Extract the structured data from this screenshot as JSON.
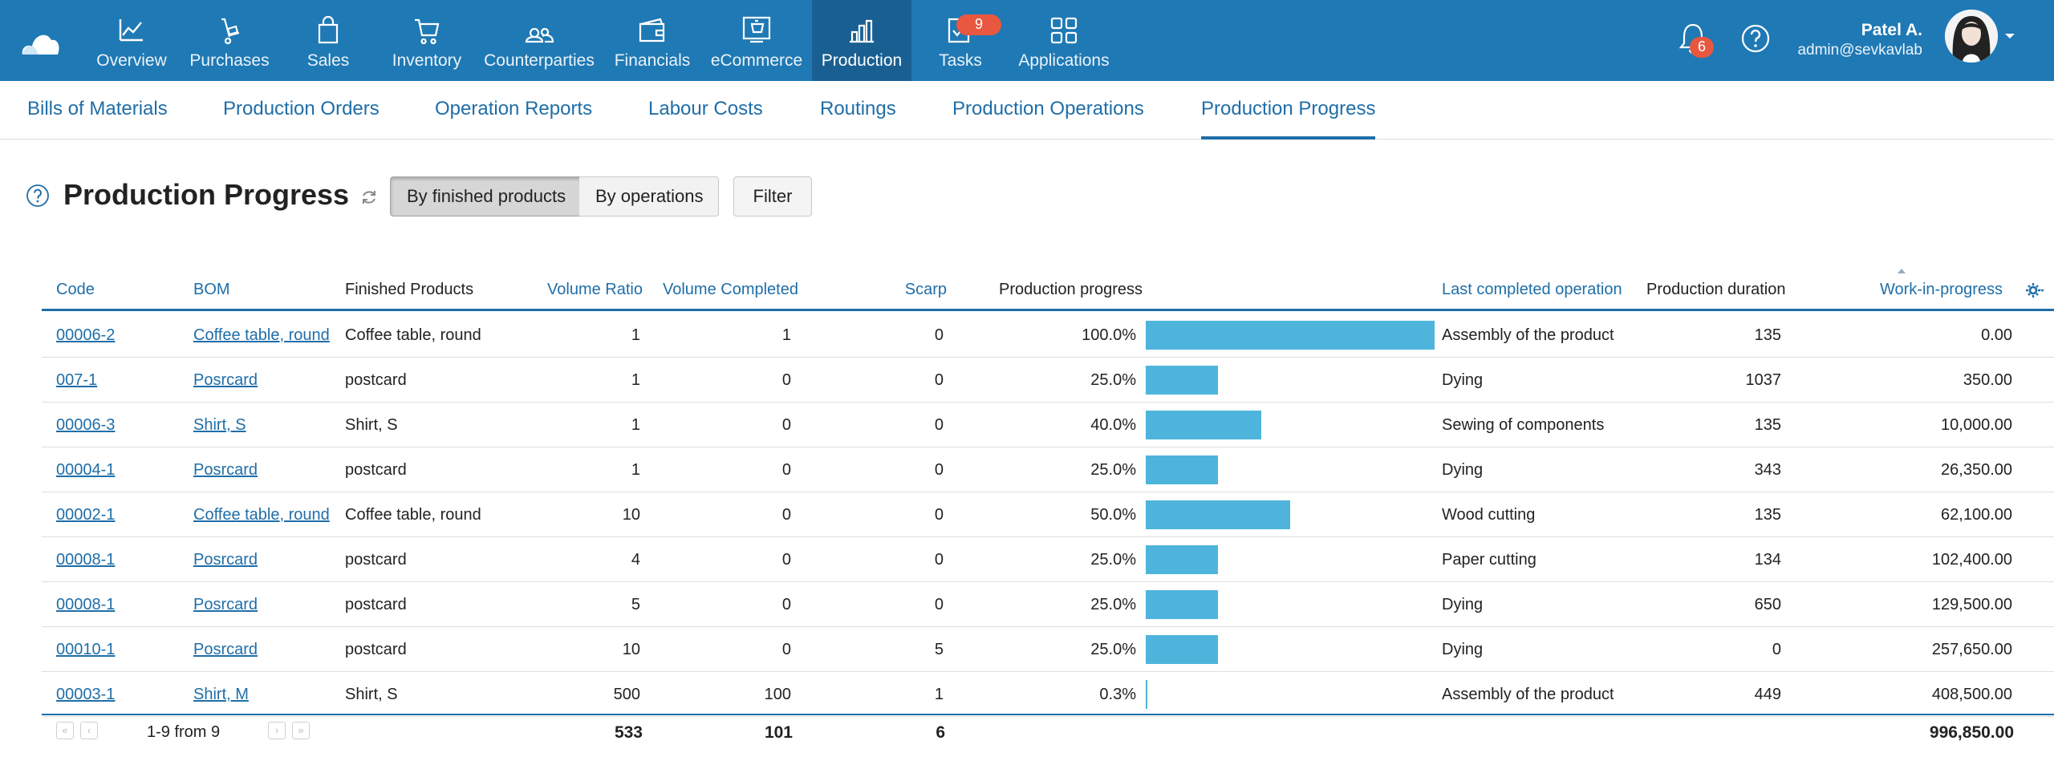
{
  "topnav": {
    "items": [
      {
        "label": "Overview",
        "icon": "chart-line-icon"
      },
      {
        "label": "Purchases",
        "icon": "hand-truck-icon"
      },
      {
        "label": "Sales",
        "icon": "shopping-bag-icon"
      },
      {
        "label": "Inventory",
        "icon": "cart-icon"
      },
      {
        "label": "Counterparties",
        "icon": "people-icon"
      },
      {
        "label": "Financials",
        "icon": "wallet-icon"
      },
      {
        "label": "eCommerce",
        "icon": "storefront-icon"
      },
      {
        "label": "Production",
        "icon": "bar-chart-icon"
      },
      {
        "label": "Tasks",
        "icon": "task-check-icon"
      },
      {
        "label": "Applications",
        "icon": "apps-grid-icon"
      }
    ],
    "tasks_badge": "9",
    "notifications_badge": "6",
    "user": {
      "name": "Patel A.",
      "email": "admin@sevkavlab"
    }
  },
  "subnav": {
    "tabs": [
      "Bills of Materials",
      "Production Orders",
      "Operation Reports",
      "Labour Costs",
      "Routings",
      "Production Operations",
      "Production Progress"
    ],
    "active": "Production Progress"
  },
  "page": {
    "title": "Production Progress",
    "seg_finished": "By finished products",
    "seg_operations": "By operations",
    "filter": "Filter"
  },
  "table": {
    "headers": {
      "code": "Code",
      "bom": "BOM",
      "finished": "Finished Products",
      "volume_ratio": "Volume Ratio",
      "volume_completed": "Volume Completed",
      "scarp": "Scarp",
      "progress": "Production progress",
      "last_op": "Last completed operation",
      "duration": "Production duration",
      "wip": "Work-in-progress"
    },
    "rows": [
      {
        "code": "00006-2",
        "bom": "Coffee table, round",
        "finished": "Coffee table, round (",
        "volume_ratio": "1",
        "volume_completed": "1",
        "scarp": "0",
        "progress": "100.0%",
        "progress_value": 100.0,
        "last_op": "Assembly of the product",
        "duration": "135",
        "wip": "0.00"
      },
      {
        "code": "007-1",
        "bom": "Posrcard",
        "finished": "postcard",
        "volume_ratio": "1",
        "volume_completed": "0",
        "scarp": "0",
        "progress": "25.0%",
        "progress_value": 25.0,
        "last_op": "Dying",
        "duration": "1037",
        "wip": "350.00"
      },
      {
        "code": "00006-3",
        "bom": "Shirt, S",
        "finished": "Shirt, S",
        "volume_ratio": "1",
        "volume_completed": "0",
        "scarp": "0",
        "progress": "40.0%",
        "progress_value": 40.0,
        "last_op": "Sewing of components",
        "duration": "135",
        "wip": "10,000.00"
      },
      {
        "code": "00004-1",
        "bom": "Posrcard",
        "finished": "postcard",
        "volume_ratio": "1",
        "volume_completed": "0",
        "scarp": "0",
        "progress": "25.0%",
        "progress_value": 25.0,
        "last_op": "Dying",
        "duration": "343",
        "wip": "26,350.00"
      },
      {
        "code": "00002-1",
        "bom": "Coffee table, round",
        "finished": "Coffee table, round (",
        "volume_ratio": "10",
        "volume_completed": "0",
        "scarp": "0",
        "progress": "50.0%",
        "progress_value": 50.0,
        "last_op": "Wood cutting",
        "duration": "135",
        "wip": "62,100.00"
      },
      {
        "code": "00008-1",
        "bom": "Posrcard",
        "finished": "postcard",
        "volume_ratio": "4",
        "volume_completed": "0",
        "scarp": "0",
        "progress": "25.0%",
        "progress_value": 25.0,
        "last_op": "Paper cutting",
        "duration": "134",
        "wip": "102,400.00"
      },
      {
        "code": "00008-1",
        "bom": "Posrcard",
        "finished": "postcard",
        "volume_ratio": "5",
        "volume_completed": "0",
        "scarp": "0",
        "progress": "25.0%",
        "progress_value": 25.0,
        "last_op": "Dying",
        "duration": "650",
        "wip": "129,500.00"
      },
      {
        "code": "00010-1",
        "bom": "Posrcard",
        "finished": "postcard",
        "volume_ratio": "10",
        "volume_completed": "0",
        "scarp": "5",
        "progress": "25.0%",
        "progress_value": 25.0,
        "last_op": "Dying",
        "duration": "0",
        "wip": "257,650.00"
      },
      {
        "code": "00003-1",
        "bom": "Shirt, M",
        "finished": "Shirt, S",
        "volume_ratio": "500",
        "volume_completed": "100",
        "scarp": "1",
        "progress": "0.3%",
        "progress_value": 0.3,
        "last_op": "Assembly of the product",
        "duration": "449",
        "wip": "408,500.00"
      }
    ],
    "footer": {
      "range": "1-9 from 9",
      "total_volume_ratio": "533",
      "total_volume_completed": "101",
      "total_scarp": "6",
      "total_wip": "996,850.00"
    }
  },
  "colors": {
    "topbar": "#1f79b4",
    "active_nav": "#1a5f92",
    "link": "#1f6ea8",
    "progress_bar": "#4fb4dc",
    "badge": "#e8573f"
  }
}
